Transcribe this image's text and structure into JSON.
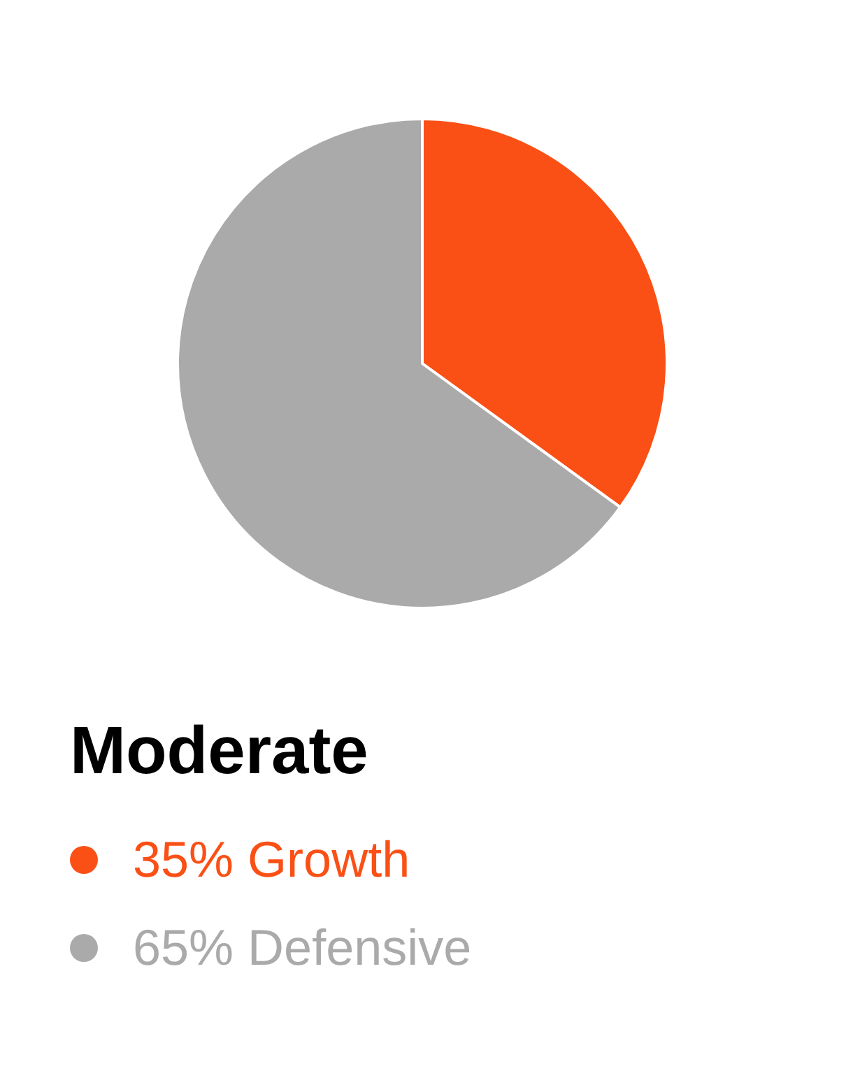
{
  "chart_data": {
    "type": "pie",
    "title": "Moderate",
    "categories": [
      "Growth",
      "Defensive"
    ],
    "values": [
      35,
      65
    ],
    "colors": [
      "#fa5016",
      "#aaaaaa"
    ],
    "value_labels": [
      "35%",
      "65%"
    ],
    "legend": "bottom left"
  }
}
